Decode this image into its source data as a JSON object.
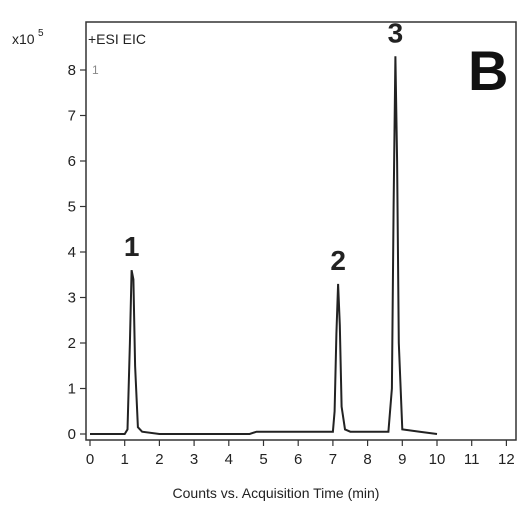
{
  "chart_data": {
    "type": "line",
    "panel_label": "B",
    "trace_label": "+ESI EIC",
    "trace_number": "1",
    "y_multiplier": "x10",
    "y_exponent": "5",
    "xlabel": "Counts vs. Acquisition Time (min)",
    "xlim": [
      0,
      12.5
    ],
    "ylim": [
      0,
      8.6
    ],
    "x_ticks": [
      0,
      1,
      2,
      3,
      4,
      5,
      6,
      7,
      8,
      9,
      10,
      11,
      12
    ],
    "y_ticks": [
      0,
      1,
      2,
      3,
      4,
      5,
      6,
      7,
      8
    ],
    "grid": false,
    "series": [
      {
        "x": [
          0.0,
          1.0,
          1.08,
          1.15,
          1.2,
          1.25,
          1.3,
          1.38,
          1.5,
          2.0,
          4.6,
          4.8,
          5.5,
          6.5,
          7.0,
          7.05,
          7.1,
          7.15,
          7.2,
          7.25,
          7.35,
          7.5,
          8.6,
          8.7,
          8.75,
          8.8,
          8.85,
          8.9,
          9.0,
          9.5,
          10.0
        ],
        "y": [
          0.0,
          0.0,
          0.1,
          2.0,
          3.6,
          3.4,
          1.5,
          0.15,
          0.05,
          0.0,
          0.0,
          0.05,
          0.05,
          0.05,
          0.05,
          0.5,
          2.2,
          3.3,
          2.4,
          0.6,
          0.1,
          0.05,
          0.05,
          1.0,
          5.0,
          8.3,
          6.0,
          2.0,
          0.1,
          0.05,
          0.0
        ]
      }
    ],
    "peaks": [
      {
        "label": "1",
        "x": 1.2,
        "y": 3.6
      },
      {
        "label": "2",
        "x": 7.15,
        "y": 3.3
      },
      {
        "label": "3",
        "x": 8.8,
        "y": 8.3
      }
    ]
  }
}
